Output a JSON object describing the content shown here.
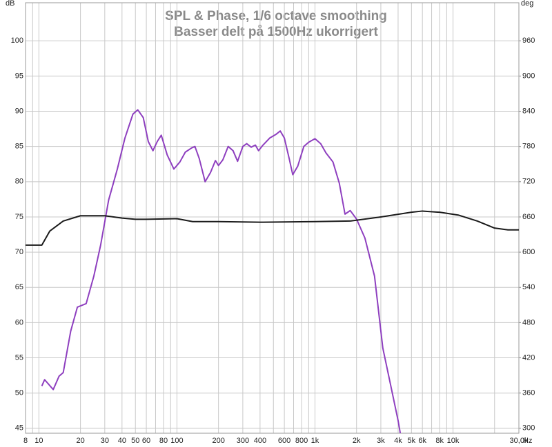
{
  "chart_data": {
    "type": "line",
    "title": "SPL & Phase, 1/6 octave smoothing",
    "subtitle": "Basser delt på 1500Hz ukorrigert",
    "ylabel": "dB",
    "y2label": "deg",
    "xlabel": "Hz",
    "xscale": "log",
    "grid": true,
    "xlim": [
      8,
      30000
    ],
    "ylim": [
      44.3,
      105.4
    ],
    "y2lim": [
      291.6,
      1024.8
    ],
    "xticks": [
      8,
      10,
      20,
      30,
      40,
      50,
      60,
      80,
      100,
      200,
      300,
      400,
      600,
      800,
      {
        "value": 1000,
        "label": "1k"
      },
      {
        "value": 2000,
        "label": "2k"
      },
      {
        "value": 3000,
        "label": "3k"
      },
      {
        "value": 4000,
        "label": "4k"
      },
      {
        "value": 5000,
        "label": "5k"
      },
      {
        "value": 6000,
        "label": "6k"
      },
      {
        "value": 8000,
        "label": "8k"
      },
      {
        "value": 10000,
        "label": "10k"
      },
      {
        "value": 30000,
        "label": "30,0k"
      }
    ],
    "xminor_ticks": [
      9,
      70,
      90,
      500,
      700,
      900,
      7000,
      9000,
      20000
    ],
    "yticks": [
      45,
      50,
      55,
      60,
      65,
      70,
      75,
      80,
      85,
      90,
      95,
      100
    ],
    "y2ticks": [
      300,
      360,
      420,
      480,
      540,
      600,
      660,
      720,
      780,
      840,
      900,
      960
    ],
    "series": [
      {
        "name": "SPL",
        "color": "#8e3fbf",
        "x": [
          10.5,
          11,
          12.7,
          14,
          15,
          17,
          19,
          22,
          25,
          28,
          32,
          37,
          42,
          48,
          52,
          57,
          62,
          67,
          72,
          77,
          85,
          95,
          105,
          115,
          128,
          135,
          145,
          160,
          175,
          190,
          200,
          215,
          235,
          255,
          275,
          300,
          320,
          345,
          370,
          390,
          420,
          470,
          520,
          560,
          600,
          650,
          690,
          750,
          830,
          900,
          1000,
          1100,
          1200,
          1350,
          1500,
          1650,
          1800,
          2000,
          2300,
          2700,
          3100,
          3500,
          4000,
          4150
        ],
        "values": [
          51.0,
          51.9,
          50.5,
          52.4,
          52.9,
          58.8,
          62.2,
          62.7,
          66.6,
          71.0,
          77.4,
          81.8,
          86.2,
          89.6,
          90.2,
          89.1,
          85.7,
          84.4,
          85.7,
          86.6,
          83.8,
          81.8,
          82.8,
          84.2,
          84.8,
          85.0,
          83.3,
          80.0,
          81.3,
          83.0,
          82.3,
          83.1,
          85.0,
          84.4,
          82.9,
          85.0,
          85.4,
          84.9,
          85.2,
          84.4,
          85.2,
          86.2,
          86.7,
          87.2,
          86.2,
          83.3,
          81.0,
          82.2,
          85.0,
          85.6,
          86.1,
          85.4,
          84.1,
          82.8,
          79.8,
          75.4,
          75.9,
          74.7,
          72.0,
          66.6,
          56.4,
          51.5,
          46.1,
          44.3
        ]
      },
      {
        "name": "Phase",
        "color": "#1a1a1a",
        "axis": "y2",
        "x": [
          8,
          10.5,
          12,
          15,
          20,
          30,
          40,
          50,
          60,
          100,
          130,
          200,
          400,
          1000,
          1800,
          3000,
          5000,
          6000,
          8000,
          11000,
          15000,
          20000,
          25000,
          30000
        ],
        "values": [
          612,
          612,
          636,
          653,
          662,
          662,
          658,
          656,
          656,
          657,
          652,
          652,
          651,
          652,
          653,
          660,
          668,
          670,
          668,
          663,
          653,
          641,
          638,
          638
        ]
      }
    ]
  }
}
